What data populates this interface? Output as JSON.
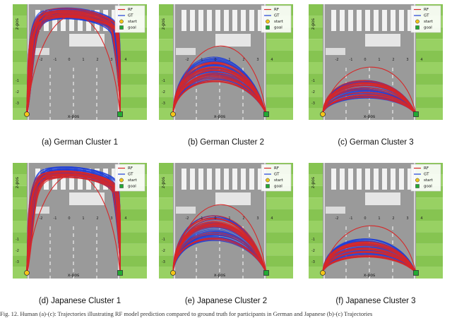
{
  "legend": {
    "rf": "RF",
    "gt": "GT",
    "start": "start",
    "goal": "goal"
  },
  "axes": {
    "xlabel": "x-pos",
    "ylabel": "z-pos"
  },
  "colors": {
    "rf": "#d62728",
    "gt": "#1f3fd8",
    "start": "#f5c518",
    "goal": "#22aa33",
    "grass": "#8fcd5a",
    "road": "#9a9a9a",
    "lane": "#ffffff"
  },
  "footnote": "Fig. 12.  Human (a)-(c): Trajectories illustrating RF model prediction compared to ground truth for participants in German and Japanese (b)-(c) Trajectories",
  "chart_data": [
    {
      "type": "line",
      "caption": "(a) German Cluster 1",
      "cluster": "turn-around-tall",
      "xlabel": "x-pos",
      "ylabel": "z-pos",
      "x_ticks": [
        "-2",
        "-1",
        "0",
        "1",
        "2",
        "3",
        "4"
      ],
      "y_ticks": [
        "-1",
        "-2",
        "-3"
      ],
      "series": [
        {
          "name": "RF"
        },
        {
          "name": "GT"
        }
      ]
    },
    {
      "type": "line",
      "caption": "(b) German Cluster 2",
      "cluster": "arc-medium",
      "xlabel": "x-pos",
      "ylabel": "z-pos",
      "x_ticks": [
        "-2",
        "-1",
        "0",
        "1",
        "2",
        "3",
        "4"
      ],
      "y_ticks": [
        "-1",
        "-2",
        "-3"
      ],
      "series": [
        {
          "name": "RF"
        },
        {
          "name": "GT"
        }
      ]
    },
    {
      "type": "line",
      "caption": "(c) German Cluster 3",
      "cluster": "arc-low",
      "xlabel": "x-pos",
      "ylabel": "z-pos",
      "x_ticks": [
        "-2",
        "-1",
        "0",
        "1",
        "2",
        "3",
        "4"
      ],
      "y_ticks": [
        "-1",
        "-2",
        "-3"
      ],
      "series": [
        {
          "name": "RF"
        },
        {
          "name": "GT"
        }
      ]
    },
    {
      "type": "line",
      "caption": "(d) Japanese Cluster 1",
      "cluster": "turn-around-tall",
      "xlabel": "x-pos",
      "ylabel": "z-pos",
      "x_ticks": [
        "-2",
        "-1",
        "0",
        "1",
        "2",
        "3",
        "4"
      ],
      "y_ticks": [
        "-1",
        "-2",
        "-3"
      ],
      "series": [
        {
          "name": "RF"
        },
        {
          "name": "GT"
        }
      ]
    },
    {
      "type": "line",
      "caption": "(e) Japanese Cluster 2",
      "cluster": "arc-medium",
      "xlabel": "x-pos",
      "ylabel": "z-pos",
      "x_ticks": [
        "-2",
        "-1",
        "0",
        "1",
        "2",
        "3",
        "4"
      ],
      "y_ticks": [
        "-1",
        "-2",
        "-3"
      ],
      "series": [
        {
          "name": "RF"
        },
        {
          "name": "GT"
        }
      ]
    },
    {
      "type": "line",
      "caption": "(f) Japanese Cluster 3",
      "cluster": "arc-low",
      "xlabel": "x-pos",
      "ylabel": "z-pos",
      "x_ticks": [
        "-2",
        "-1",
        "0",
        "1",
        "2",
        "3",
        "4"
      ],
      "y_ticks": [
        "-1",
        "-2",
        "-3"
      ],
      "series": [
        {
          "name": "RF"
        },
        {
          "name": "GT"
        }
      ]
    }
  ]
}
